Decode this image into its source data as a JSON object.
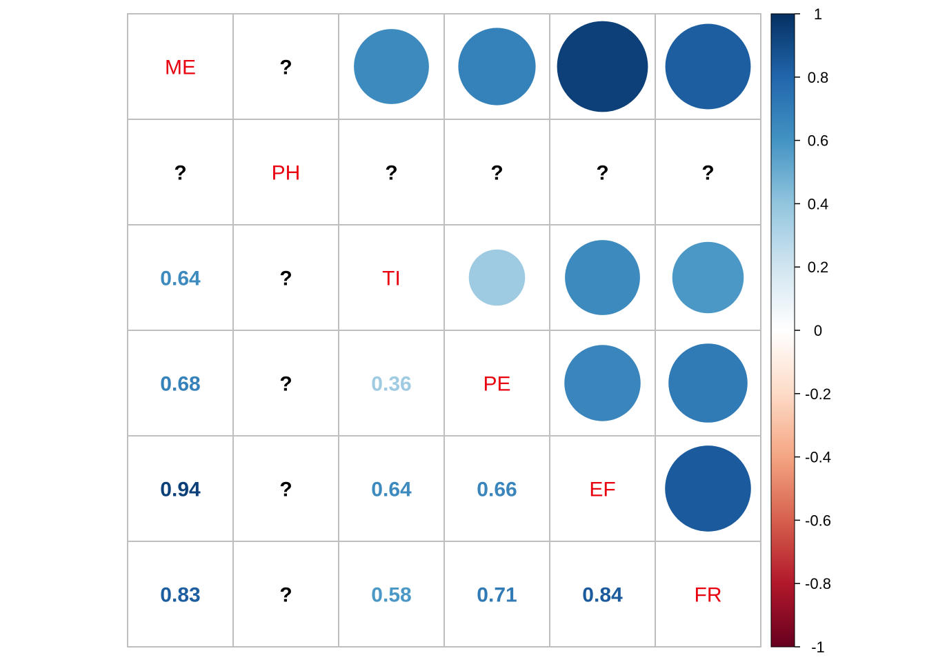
{
  "chart_data": {
    "type": "heatmap",
    "variables": [
      "ME",
      "PH",
      "TI",
      "PE",
      "EF",
      "FR"
    ],
    "missing_symbol": "?",
    "upper_method": "circle",
    "lower_method": "number",
    "diagonal": "labels",
    "matrix": [
      [
        1,
        null,
        0.64,
        0.68,
        0.94,
        0.83
      ],
      [
        null,
        1,
        null,
        null,
        null,
        null
      ],
      [
        0.64,
        null,
        1,
        0.36,
        0.64,
        0.58
      ],
      [
        0.68,
        null,
        0.36,
        1,
        0.66,
        0.71
      ],
      [
        0.94,
        null,
        0.64,
        0.66,
        1,
        0.84
      ],
      [
        0.83,
        null,
        0.58,
        0.71,
        0.84,
        1
      ]
    ],
    "value_labels": [
      [
        "",
        "",
        "",
        "",
        "",
        ""
      ],
      [
        "",
        "",
        "",
        "",
        "",
        ""
      ],
      [
        "0.64",
        "",
        "",
        "",
        "",
        ""
      ],
      [
        "0.68",
        "",
        "0.36",
        "",
        "",
        ""
      ],
      [
        "0.94",
        "",
        "0.64",
        "0.66",
        "",
        ""
      ],
      [
        "0.83",
        "",
        "0.58",
        "0.71",
        "0.84",
        ""
      ]
    ],
    "colorbar": {
      "range": [
        -1,
        1
      ],
      "ticks": [
        "1",
        "0.8",
        "0.6",
        "0.4",
        "0.2",
        "0",
        "-0.2",
        "-0.4",
        "-0.6",
        "-0.8",
        "-1"
      ],
      "tick_values": [
        1,
        0.8,
        0.6,
        0.4,
        0.2,
        0,
        -0.2,
        -0.4,
        -0.6,
        -0.8,
        -1
      ],
      "colors": [
        "#67001F",
        "#B2182B",
        "#D6604D",
        "#F4A582",
        "#FDDBC7",
        "#FFFFFF",
        "#D1E5F0",
        "#92C5DE",
        "#4393C3",
        "#2166AC",
        "#053061"
      ]
    },
    "label_color": "#E8000F",
    "grid_color": "#BEBEBE",
    "missing_color": "#000000"
  }
}
